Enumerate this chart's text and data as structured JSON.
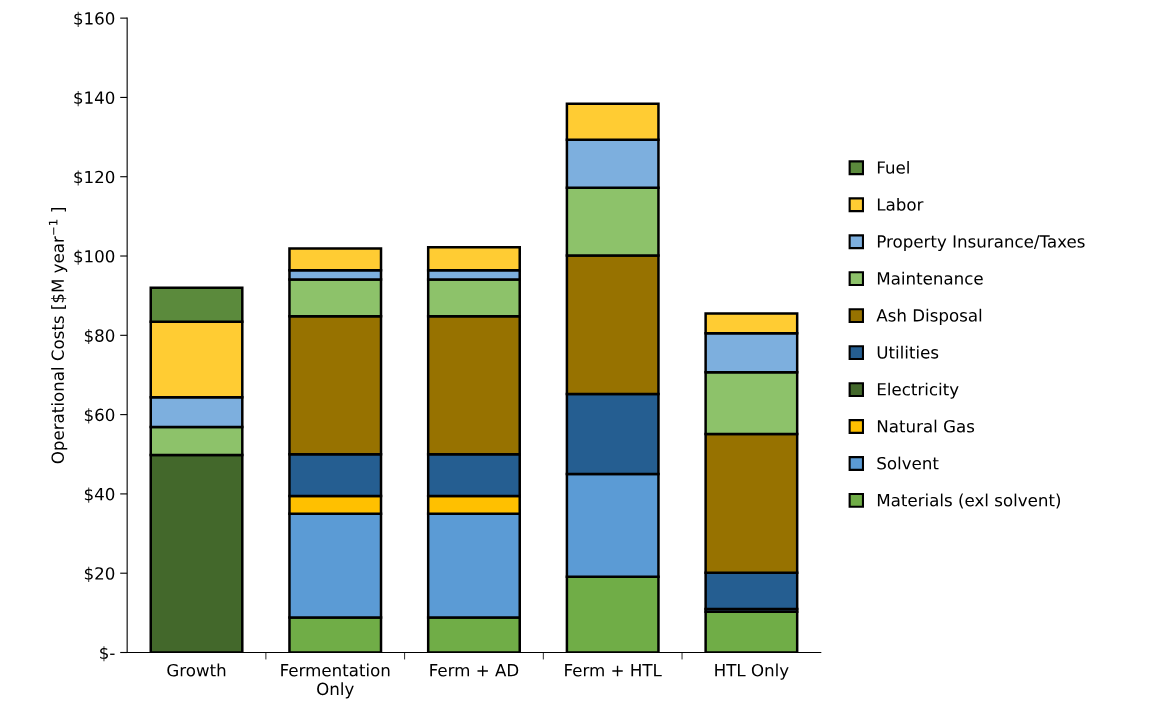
{
  "chart_data": {
    "type": "bar",
    "stacked": true,
    "ylabel": "Operational Costs [$M year$^{−1}$ ]",
    "categories": [
      "Growth",
      "Fermentation\nOnly",
      "Ferm + AD",
      "Ferm + HTL",
      "HTL Only"
    ],
    "series": [
      {
        "name": "Materials (exl solvent)",
        "color": "#70ad47",
        "values": [
          0,
          8.8,
          8.8,
          19.1,
          10.3
        ]
      },
      {
        "name": "Solvent",
        "color": "#5b9bd5",
        "values": [
          0,
          26.2,
          26.2,
          25.9,
          0.7
        ]
      },
      {
        "name": "Natural Gas",
        "color": "#ffc000",
        "values": [
          0,
          4.5,
          4.5,
          0,
          0
        ]
      },
      {
        "name": "Electricity",
        "color": "#43682b",
        "values": [
          49.8,
          0,
          0,
          0,
          0
        ]
      },
      {
        "name": "Utilities",
        "color": "#255e91",
        "values": [
          0,
          10.5,
          10.5,
          20.2,
          9.1
        ]
      },
      {
        "name": "Ash Disposal",
        "color": "#977200",
        "values": [
          0,
          34.8,
          34.8,
          34.9,
          35.0
        ]
      },
      {
        "name": "Maintenance",
        "color": "#8dc26a",
        "values": [
          7.1,
          9.3,
          9.3,
          17.1,
          15.6
        ]
      },
      {
        "name": "Property Insurance/Taxes",
        "color": "#7dafde",
        "values": [
          7.5,
          2.3,
          2.3,
          12.1,
          9.8
        ]
      },
      {
        "name": "Labor",
        "color": "#ffcc33",
        "values": [
          19.0,
          5.5,
          5.8,
          9.1,
          5.0
        ]
      },
      {
        "name": "Fuel",
        "color": "#5b8a3c",
        "values": [
          8.6,
          0,
          0,
          0,
          0
        ]
      }
    ],
    "ylim": [
      0,
      160
    ],
    "yticks": [
      {
        "value": 0,
        "label": "$-"
      },
      {
        "value": 20,
        "label": "$20"
      },
      {
        "value": 40,
        "label": "$40"
      },
      {
        "value": 60,
        "label": "$60"
      },
      {
        "value": 80,
        "label": "$80"
      },
      {
        "value": 100,
        "label": "$100"
      },
      {
        "value": 120,
        "label": "$120"
      },
      {
        "value": 140,
        "label": "$140"
      },
      {
        "value": 160,
        "label": "$160"
      }
    ],
    "grid": false,
    "legend": "right"
  }
}
